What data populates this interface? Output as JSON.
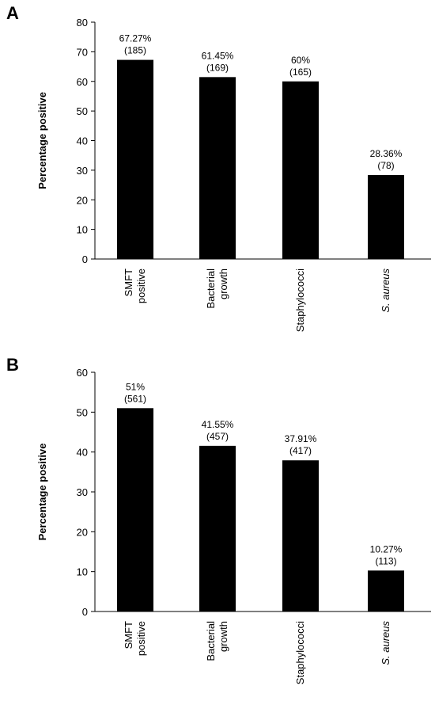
{
  "chart_data": [
    {
      "type": "bar",
      "panel_label": "A",
      "y_label": "Percentage positive",
      "categories": [
        [
          "SMFT",
          "positive"
        ],
        [
          "Bacterial",
          "growth"
        ],
        [
          "Staphylococci"
        ],
        [
          "S. aureus"
        ]
      ],
      "values": [
        67.27,
        61.45,
        60,
        28.36
      ],
      "value_labels": [
        [
          "67.27%",
          "(185)"
        ],
        [
          "61.45%",
          "(169)"
        ],
        [
          "60%",
          "(165)"
        ],
        [
          "28.36%",
          "(78)"
        ]
      ],
      "color": "#000000",
      "ylim": [
        0,
        80
      ],
      "yticks": [
        0,
        10,
        20,
        30,
        40,
        50,
        60,
        70,
        80
      ]
    },
    {
      "type": "bar",
      "panel_label": "B",
      "y_label": "Percentage positive",
      "categories": [
        [
          "SMFT",
          "positive"
        ],
        [
          "Bacterial",
          "growth"
        ],
        [
          "Staphylococci"
        ],
        [
          "S. aureus"
        ]
      ],
      "values": [
        51,
        41.55,
        37.91,
        10.27
      ],
      "value_labels": [
        [
          "51%",
          "(561)"
        ],
        [
          "41.55%",
          "(457)"
        ],
        [
          "37.91%",
          "(417)"
        ],
        [
          "10.27%",
          "(113)"
        ]
      ],
      "color": "#000000",
      "ylim": [
        0,
        60
      ],
      "yticks": [
        0,
        10,
        20,
        30,
        40,
        50,
        60
      ]
    }
  ]
}
